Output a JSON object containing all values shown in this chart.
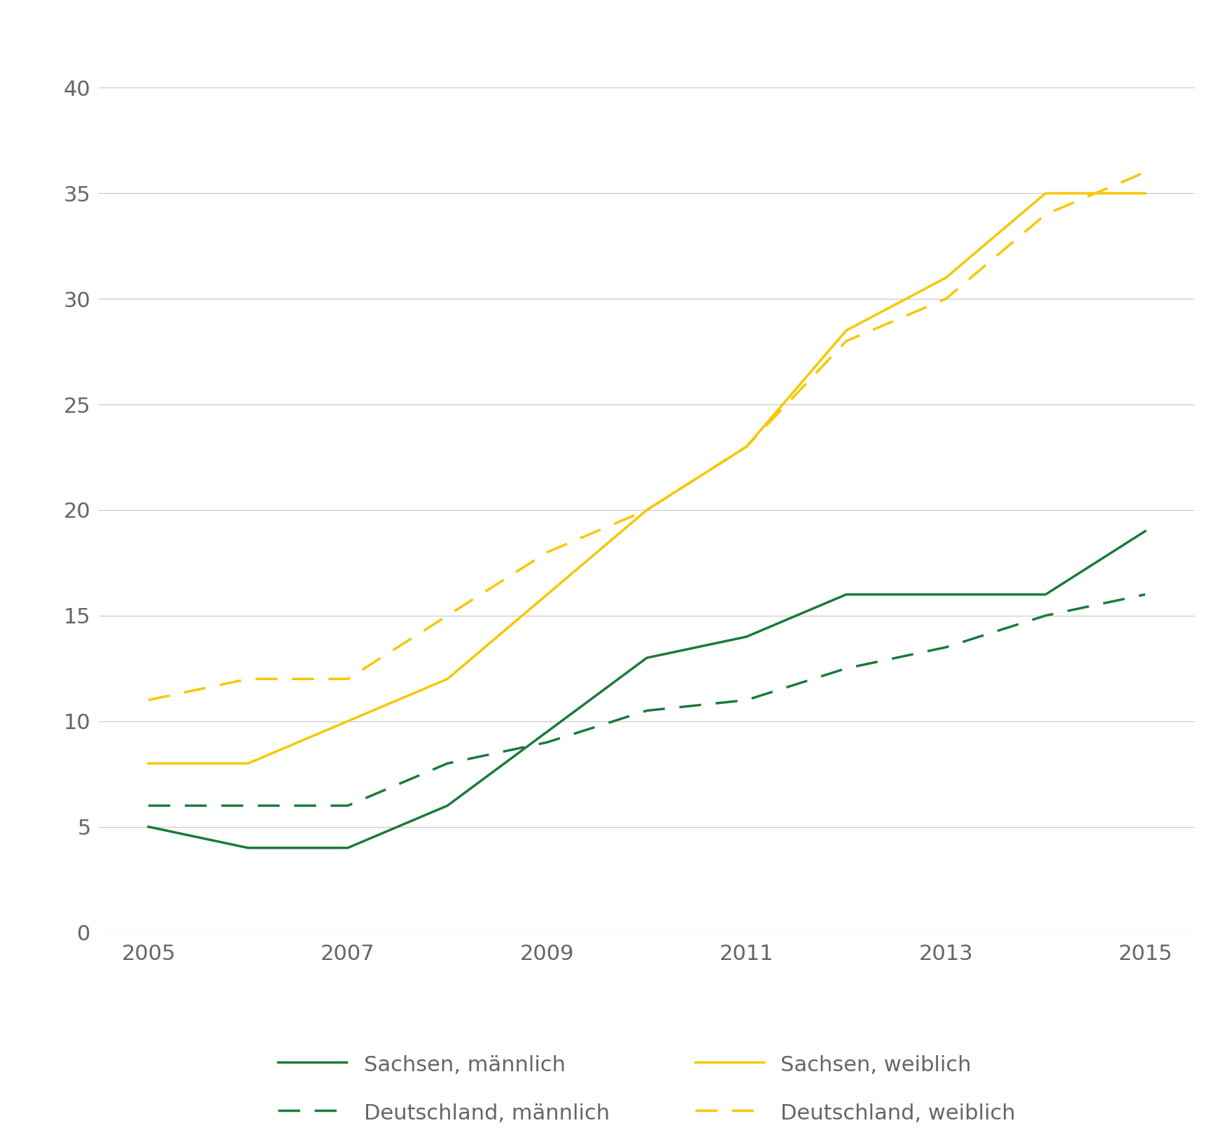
{
  "years": [
    2005,
    2006,
    2007,
    2008,
    2009,
    2010,
    2011,
    2012,
    2013,
    2014,
    2015
  ],
  "sachsen_maennlich": [
    5,
    4,
    4,
    6,
    9.5,
    13,
    14,
    16,
    16,
    16,
    19
  ],
  "deutschland_maennlich": [
    6,
    6,
    6,
    8,
    9,
    10.5,
    11,
    12.5,
    13.5,
    15,
    16
  ],
  "sachsen_weiblich": [
    8,
    8,
    10,
    12,
    16,
    20,
    23,
    28.5,
    31,
    35,
    35
  ],
  "deutschland_weiblich": [
    11,
    12,
    12,
    15,
    18,
    20,
    23,
    28,
    30,
    34,
    36
  ],
  "color_green": "#1a7a3a",
  "color_yellow": "#f5c800",
  "ylim": [
    0,
    42
  ],
  "xlim_min": 2004.5,
  "xlim_max": 2015.5,
  "yticks": [
    0,
    5,
    10,
    15,
    20,
    25,
    30,
    35,
    40
  ],
  "xticks": [
    2005,
    2007,
    2009,
    2011,
    2013,
    2015
  ],
  "legend_sachsen_maennlich": "Sachsen, männlich",
  "legend_deutschland_maennlich": "Deutschland, männlich",
  "legend_sachsen_weiblich": "Sachsen, weiblich",
  "legend_deutschland_weiblich": "Deutschland, weiblich",
  "background_color": "#ffffff",
  "grid_color": "#cccccc",
  "tick_label_color": "#666666",
  "line_width": 2.5,
  "font_size_ticks": 22,
  "font_size_legend": 22
}
